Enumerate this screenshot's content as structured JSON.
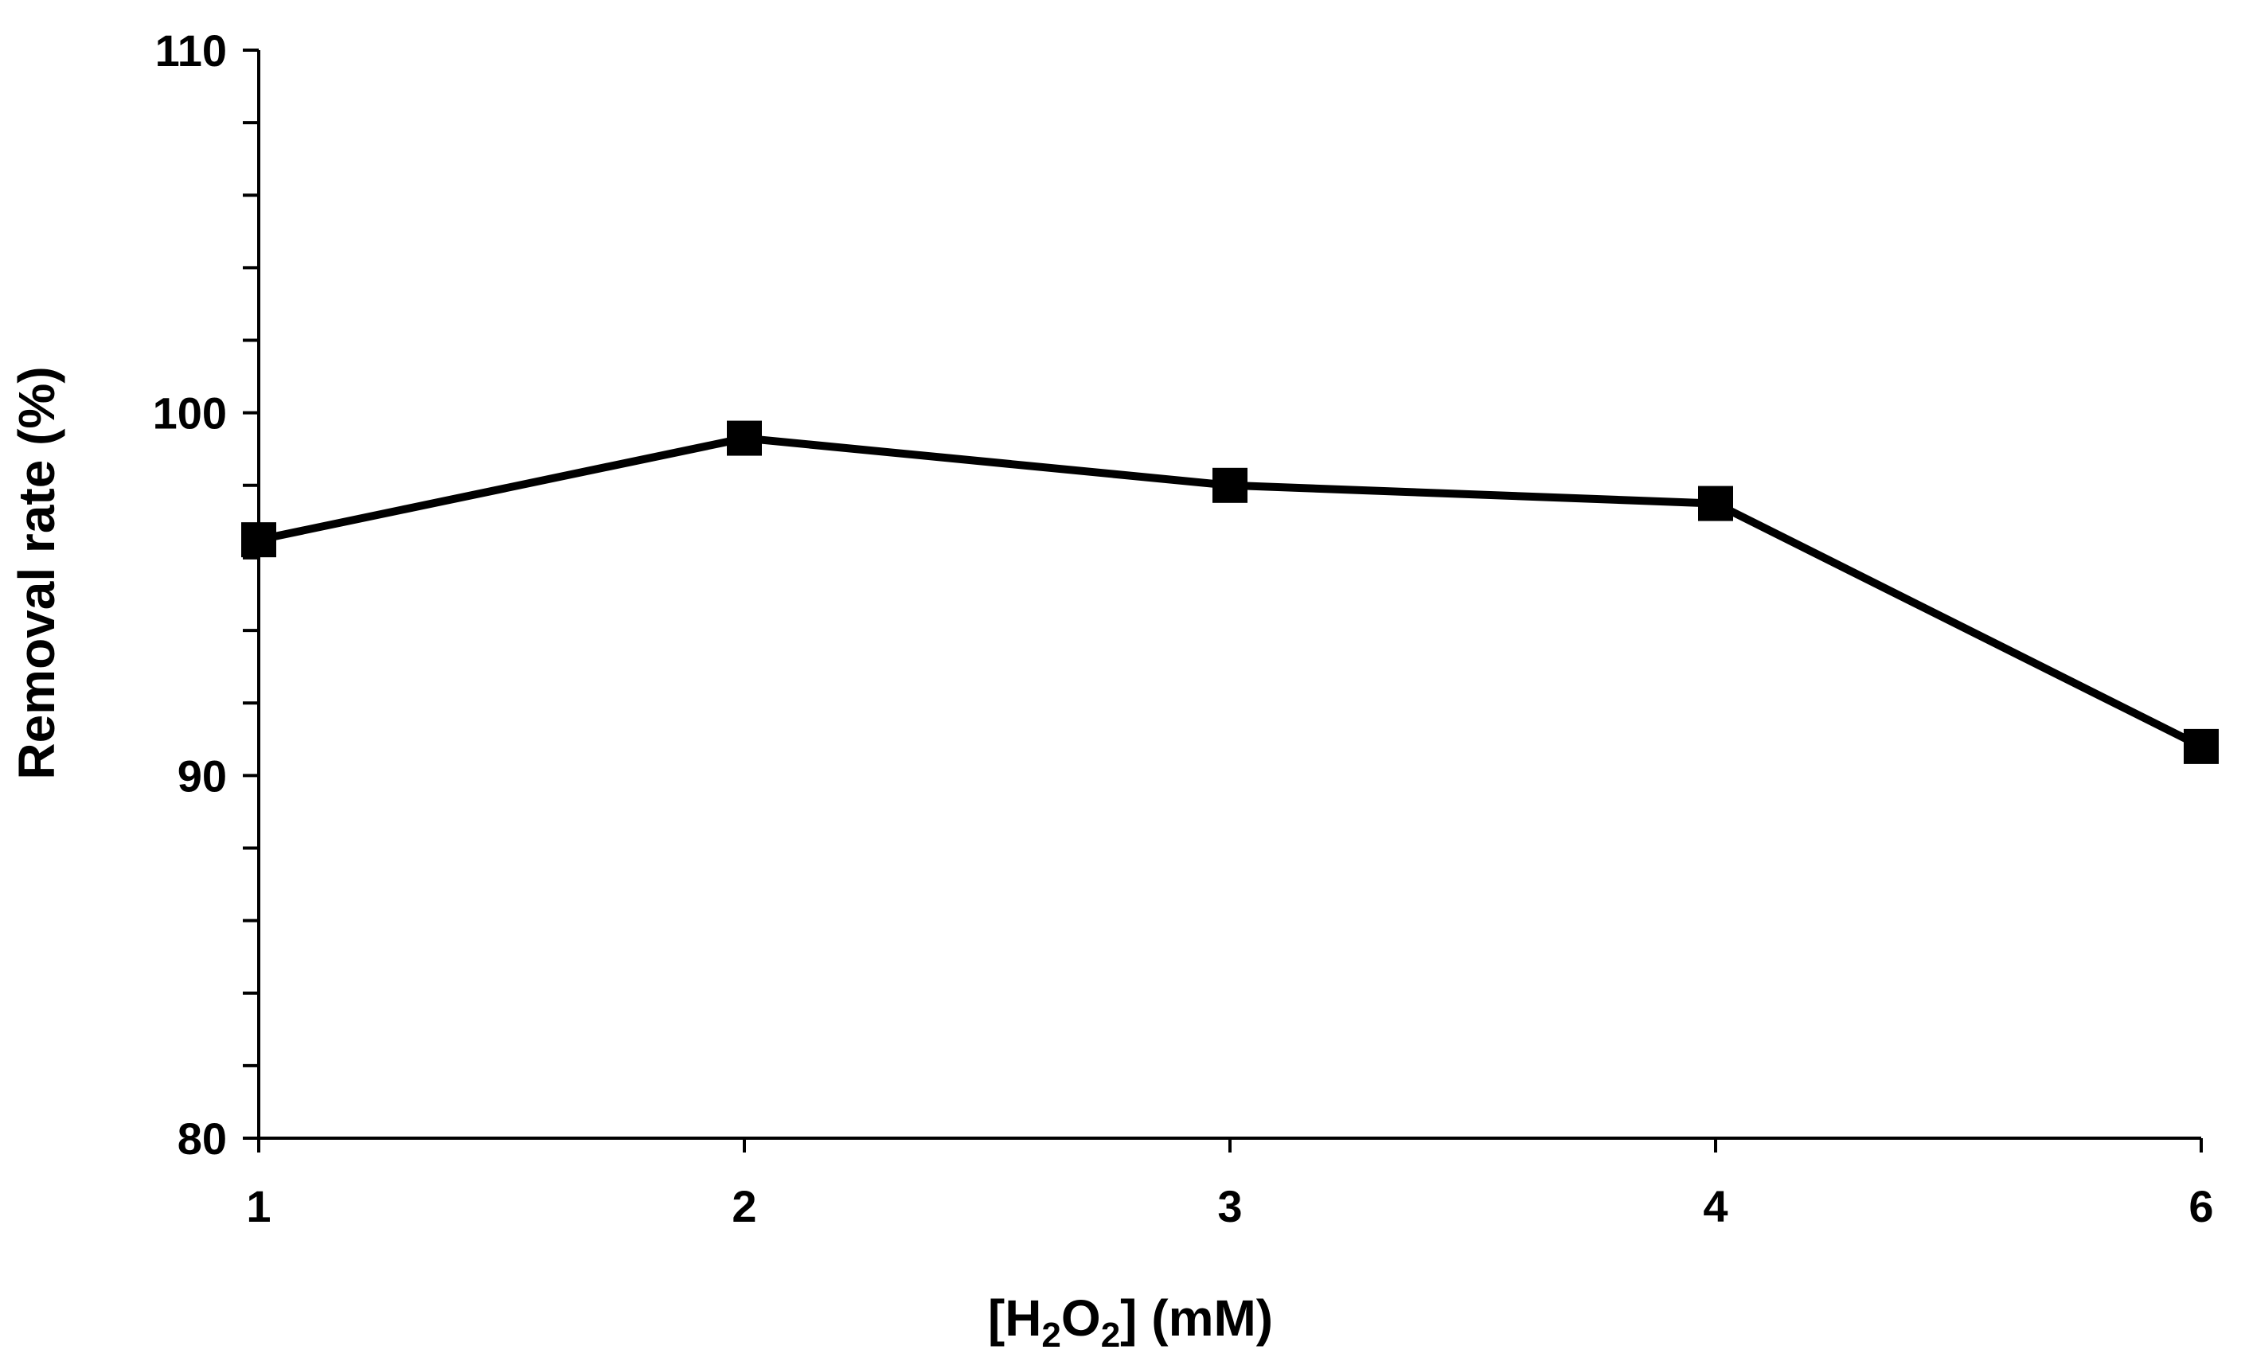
{
  "chart_data": {
    "type": "line",
    "x": [
      "1",
      "2",
      "3",
      "4",
      "6"
    ],
    "values": [
      96.5,
      99.3,
      98.0,
      97.5,
      90.8
    ],
    "ylim": [
      80,
      110
    ],
    "yticks": [
      "80",
      "90",
      "100",
      "110"
    ],
    "y_minor_step": 2,
    "ylabel": "Removal rate (%)",
    "xlabel": {
      "prefix": "[H",
      "sub1": "2",
      "mid": "O",
      "sub2": "2",
      "suffix": "] (mM)"
    },
    "marker": "square",
    "line_color": "#000000",
    "grid": false,
    "legend": "none"
  }
}
